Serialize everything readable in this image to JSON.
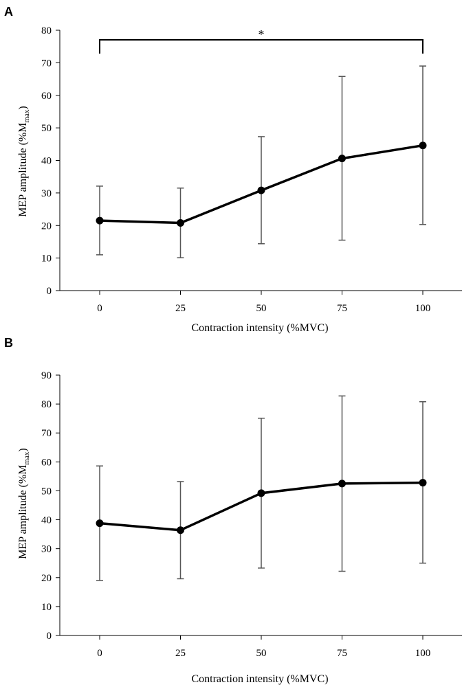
{
  "chart_data": [
    {
      "type": "line",
      "panel_label": "A",
      "x": [
        0,
        25,
        50,
        75,
        100
      ],
      "x_tick_labels": [
        "0",
        "25",
        "50",
        "75",
        "100"
      ],
      "series": [
        {
          "name": "MEP amplitude",
          "values": [
            21.5,
            20.8,
            30.8,
            40.6,
            44.6
          ],
          "error_upper": [
            32.1,
            31.5,
            47.3,
            65.8,
            69.0
          ],
          "error_lower": [
            11.0,
            10.1,
            14.4,
            15.5,
            20.3
          ]
        }
      ],
      "y_ticks": [
        0,
        10,
        20,
        30,
        40,
        50,
        60,
        70,
        80
      ],
      "ylim": [
        0,
        80
      ],
      "xlabel": "Contraction intensity (%MVC)",
      "ylabel_main": "MEP amplitude (%M",
      "ylabel_sub": "max",
      "ylabel_tail": ")",
      "significance": {
        "from": 0,
        "to": 100,
        "symbol": "*"
      }
    },
    {
      "type": "line",
      "panel_label": "B",
      "x": [
        0,
        25,
        50,
        75,
        100
      ],
      "x_tick_labels": [
        "0",
        "25",
        "50",
        "75",
        "100"
      ],
      "series": [
        {
          "name": "MEP amplitude",
          "values": [
            38.8,
            36.4,
            49.2,
            52.5,
            52.8
          ],
          "error_upper": [
            58.6,
            53.2,
            75.1,
            82.8,
            80.8
          ],
          "error_lower": [
            19.0,
            19.6,
            23.3,
            22.2,
            25.0
          ]
        }
      ],
      "y_ticks": [
        0,
        10,
        20,
        30,
        40,
        50,
        60,
        70,
        80,
        90
      ],
      "ylim": [
        0,
        90
      ],
      "xlabel": "Contraction intensity (%MVC)",
      "ylabel_main": "MEP amplitude (%M",
      "ylabel_sub": "max",
      "ylabel_tail": ")"
    }
  ]
}
